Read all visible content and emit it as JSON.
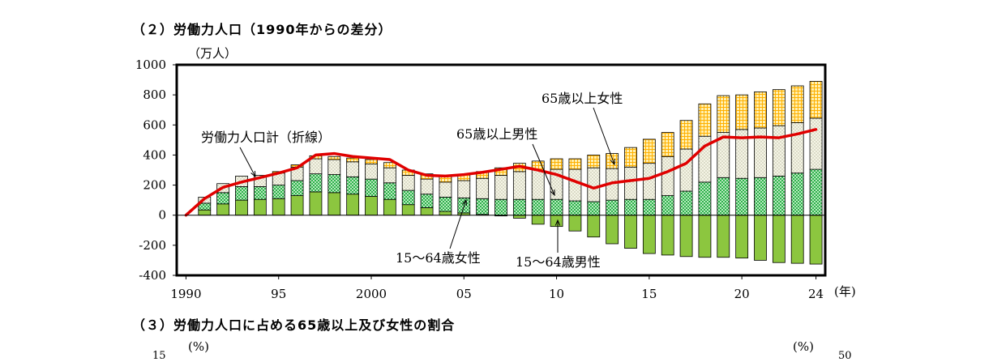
{
  "section2_title": "（２）労働力人口（1990年からの差分）",
  "section3_title": "（３）労働力人口に占める65歳以上及び女性の割合",
  "colors": {
    "male_15_64": "#8cc63f",
    "female_15_64": "#2db34a",
    "male_65plus": "#f2f2e0",
    "female_65plus": "#ffc000",
    "total_line": "#e00000"
  },
  "chart_data": {
    "type": "bar",
    "stacked": true,
    "y_unit_label": "（万人）",
    "x_unit_label": "(年)",
    "ylim": [
      -400,
      1000
    ],
    "y_ticks": [
      "1000",
      "800",
      "600",
      "400",
      "200",
      "0",
      "-200",
      "-400"
    ],
    "x_tick_labels": [
      "1990",
      "95",
      "2000",
      "05",
      "10",
      "15",
      "20",
      "24"
    ],
    "years": [
      1990,
      1991,
      1992,
      1993,
      1994,
      1995,
      1996,
      1997,
      1998,
      1999,
      2000,
      2001,
      2002,
      2003,
      2004,
      2005,
      2006,
      2007,
      2008,
      2009,
      2010,
      2011,
      2012,
      2013,
      2014,
      2015,
      2016,
      2017,
      2018,
      2019,
      2020,
      2021,
      2022,
      2023,
      2024
    ],
    "series": [
      {
        "name": "15～64歳男性",
        "values": [
          0,
          35,
          75,
          100,
          105,
          110,
          130,
          155,
          150,
          140,
          125,
          105,
          70,
          50,
          25,
          15,
          5,
          -5,
          -20,
          -60,
          -75,
          -105,
          -145,
          -190,
          -220,
          -255,
          -265,
          -275,
          -280,
          -280,
          -285,
          -300,
          -315,
          -320,
          -325
        ]
      },
      {
        "name": "15～64歳女性",
        "values": [
          0,
          45,
          75,
          90,
          85,
          90,
          100,
          120,
          120,
          115,
          115,
          110,
          95,
          90,
          95,
          100,
          105,
          105,
          105,
          105,
          105,
          95,
          90,
          100,
          105,
          105,
          130,
          160,
          220,
          250,
          245,
          250,
          260,
          280,
          305
        ]
      },
      {
        "name": "65歳以上男性",
        "values": [
          0,
          40,
          60,
          70,
          75,
          80,
          90,
          100,
          100,
          100,
          100,
          100,
          100,
          100,
          100,
          115,
          135,
          160,
          185,
          195,
          200,
          210,
          225,
          210,
          215,
          240,
          260,
          280,
          305,
          300,
          325,
          330,
          335,
          335,
          340
        ]
      },
      {
        "name": "65歳以上女性",
        "values": [
          0,
          0,
          0,
          0,
          0,
          10,
          15,
          20,
          20,
          25,
          30,
          35,
          35,
          35,
          40,
          40,
          45,
          50,
          55,
          60,
          70,
          70,
          85,
          100,
          130,
          160,
          160,
          190,
          215,
          245,
          230,
          240,
          240,
          245,
          245
        ]
      }
    ],
    "line": {
      "name": "労働力人口計（折線）",
      "values": [
        0,
        110,
        185,
        220,
        250,
        280,
        315,
        400,
        410,
        390,
        380,
        370,
        300,
        265,
        260,
        270,
        285,
        305,
        325,
        300,
        270,
        225,
        180,
        215,
        230,
        245,
        290,
        345,
        460,
        520,
        515,
        520,
        515,
        540,
        570
      ]
    },
    "annotations": {
      "female_65plus": "65歳以上女性",
      "male_65plus": "65歳以上男性",
      "total": "労働力人口計（折線）",
      "female_15_64": "15～64歳女性",
      "male_15_64": "15～64歳男性"
    }
  },
  "chart3_partial": {
    "left_unit": "(%)",
    "right_unit": "(%)",
    "left_top_tick": "15",
    "right_top_tick": "50"
  }
}
